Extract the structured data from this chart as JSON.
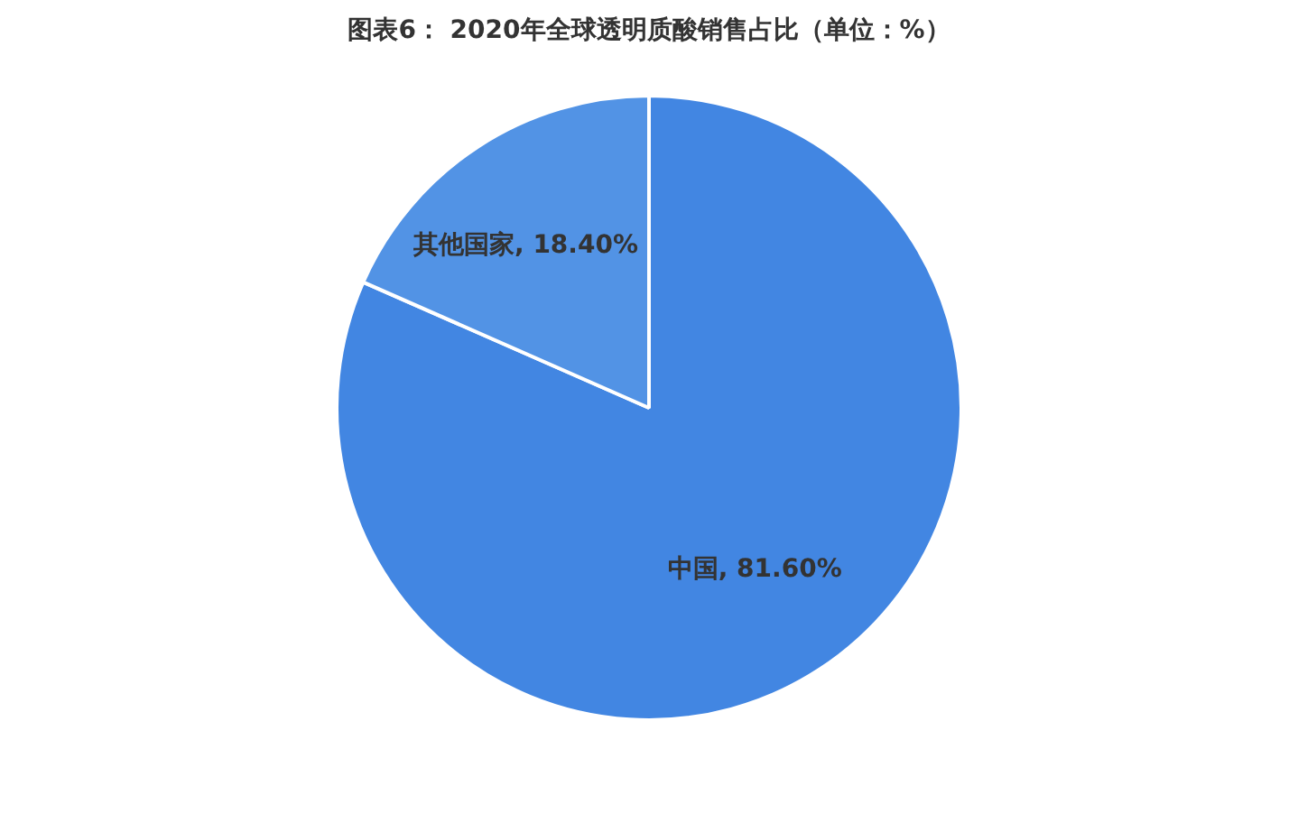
{
  "chart_data": {
    "type": "pie",
    "title": "图表6： 2020年全球透明质酸销售占比（单位：%）",
    "categories": [
      "中国",
      "其他国家"
    ],
    "values": [
      81.6,
      18.4
    ],
    "value_labels": [
      "81.60%",
      "18.40%"
    ],
    "colors": [
      "#4286e2",
      "#5293e5"
    ],
    "legend": false
  }
}
